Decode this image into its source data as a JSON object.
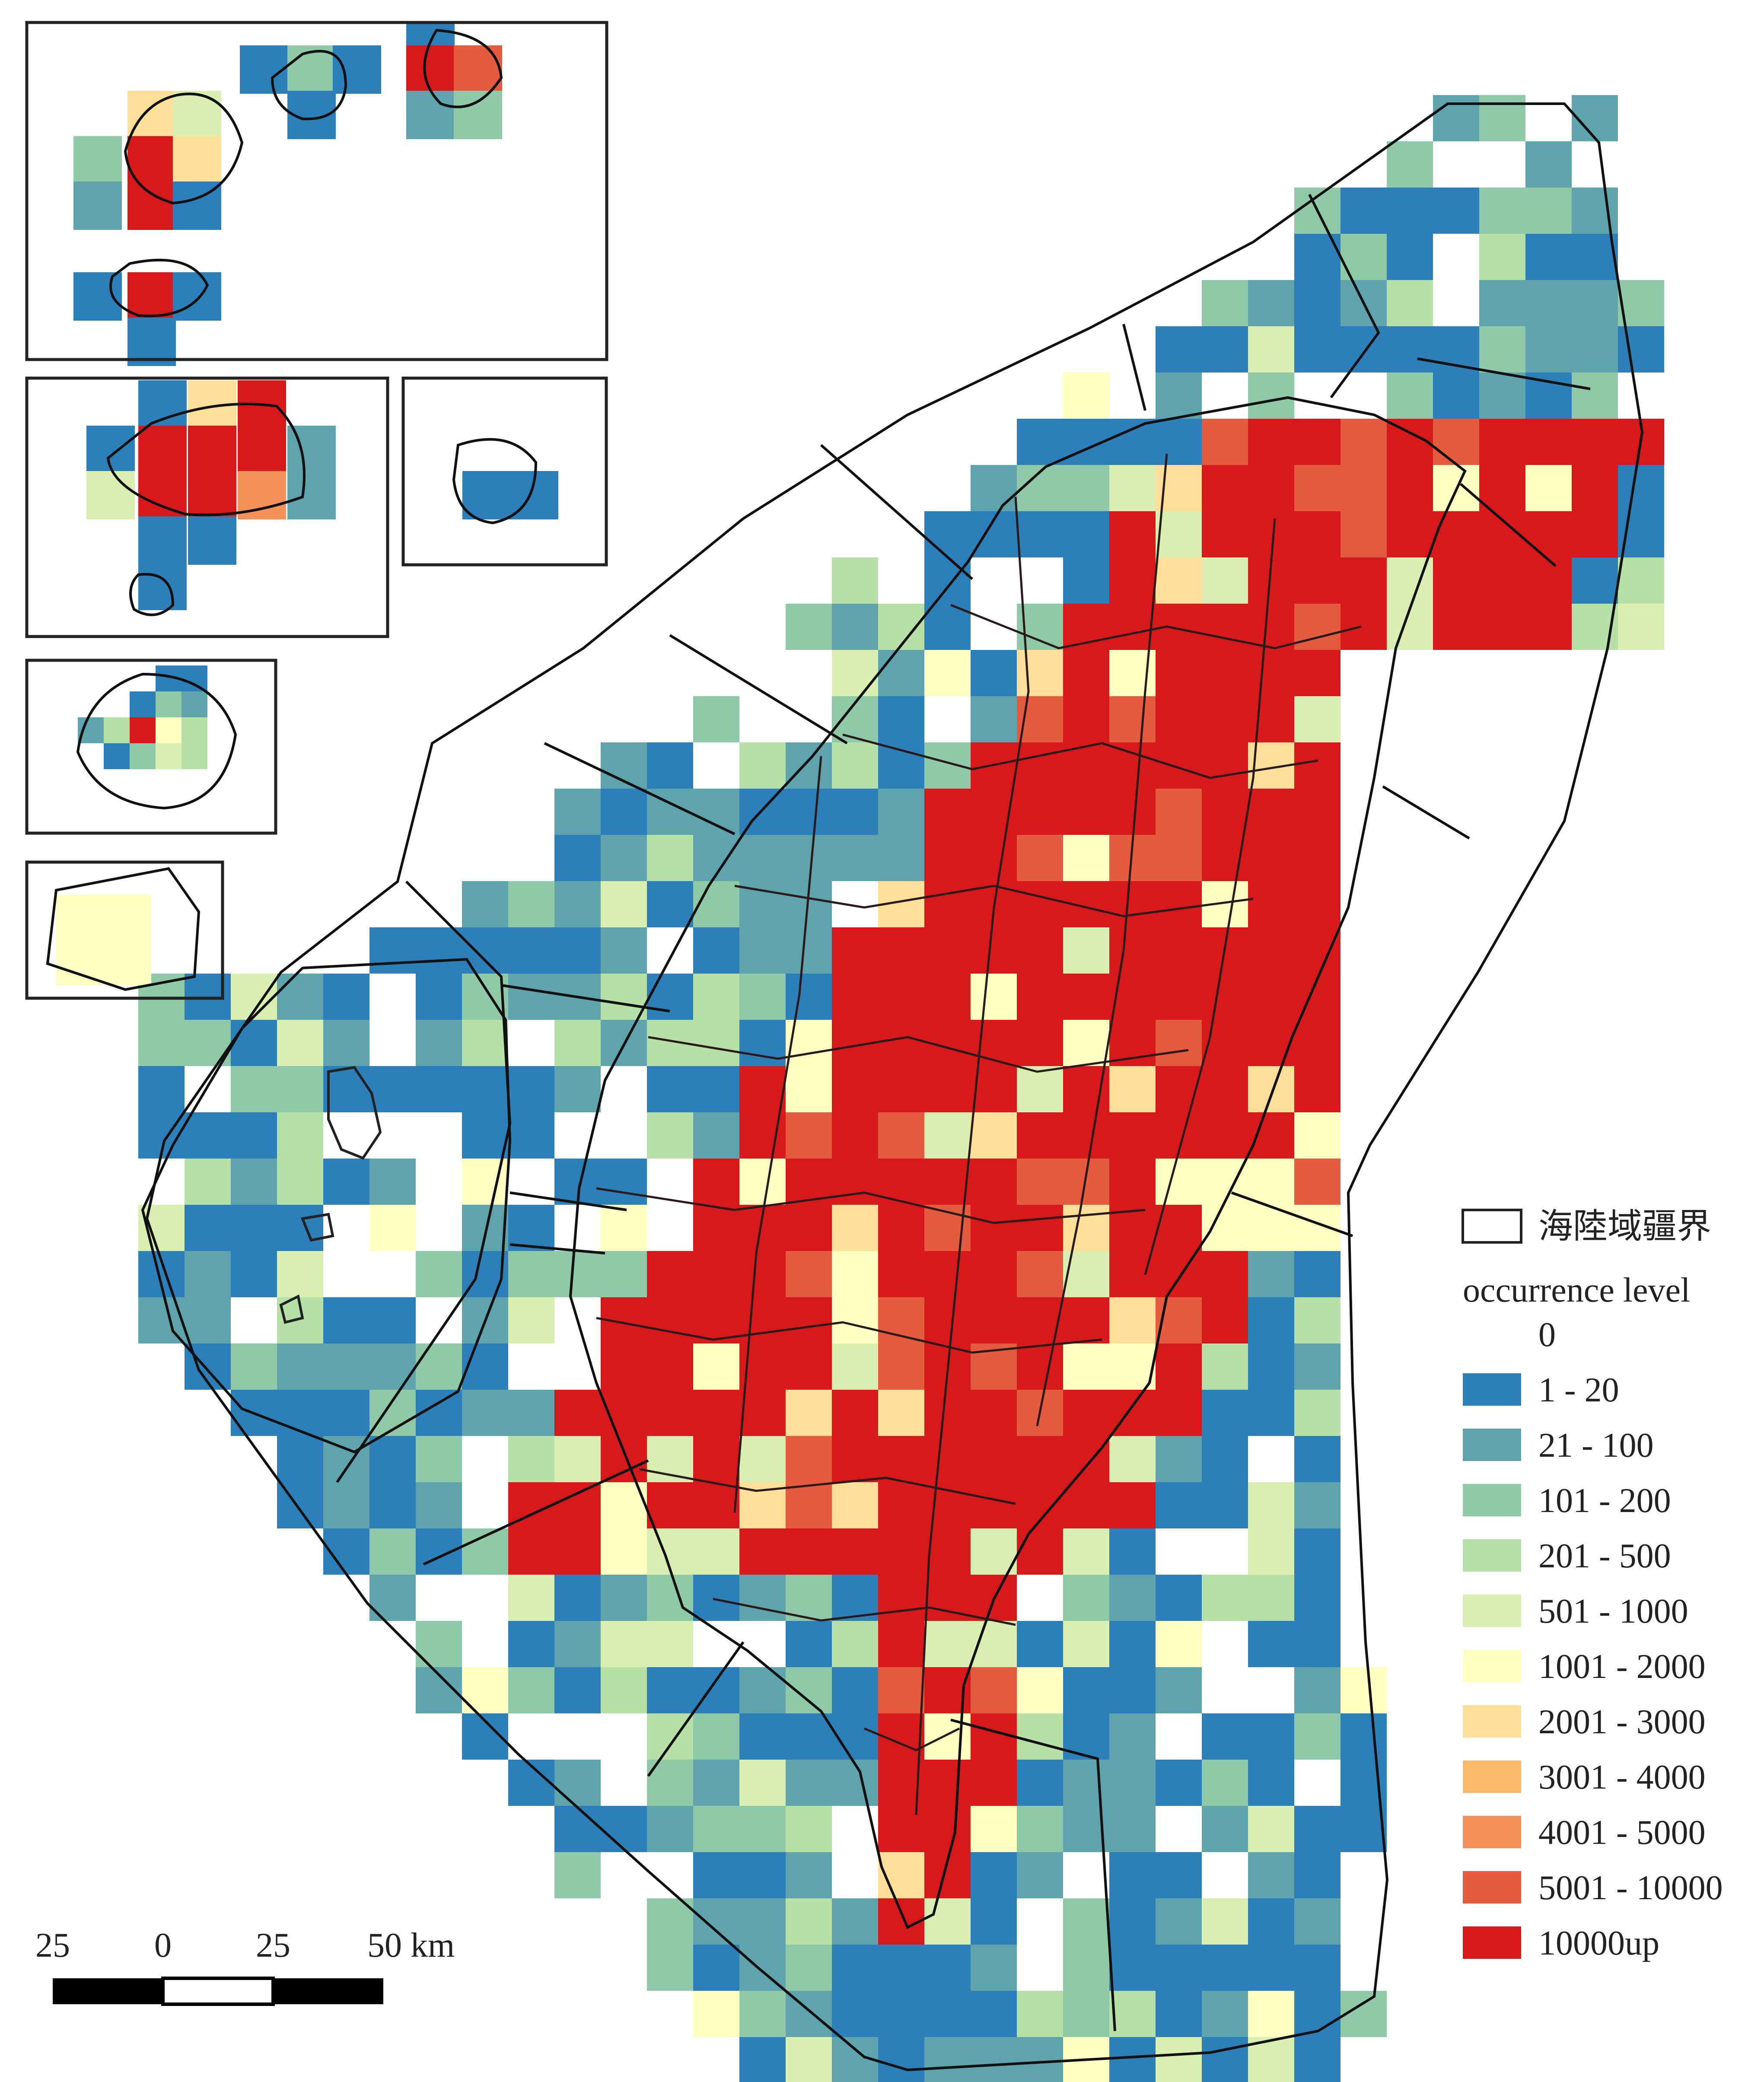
{
  "legend": {
    "boundary_label": "海陸域疆界",
    "title": "occurrence level",
    "classes": [
      {
        "label": "0",
        "color": "#ffffff"
      },
      {
        "label": "1 - 20",
        "color": "#2c7fb8"
      },
      {
        "label": "21 - 100",
        "color": "#5fa3ad"
      },
      {
        "label": "101 - 200",
        "color": "#8fc9a8"
      },
      {
        "label": "201 - 500",
        "color": "#b7e0a6"
      },
      {
        "label": "501 - 1000",
        "color": "#d9efb2"
      },
      {
        "label": "1001 - 2000",
        "color": "#ffffc2"
      },
      {
        "label": "2001 - 3000",
        "color": "#fedf9a"
      },
      {
        "label": "3001 - 4000",
        "color": "#fdb96a"
      },
      {
        "label": "4001 - 5000",
        "color": "#f4915a"
      },
      {
        "label": "5001 - 10000",
        "color": "#e45b3f"
      },
      {
        "label": "10000up",
        "color": "#d7191c"
      }
    ]
  },
  "scale_bar": {
    "labels": [
      "25",
      "0",
      "25",
      "50 km"
    ]
  },
  "colors": {
    "outline": "#111111",
    "district_lines": "#2b1a1a"
  }
}
